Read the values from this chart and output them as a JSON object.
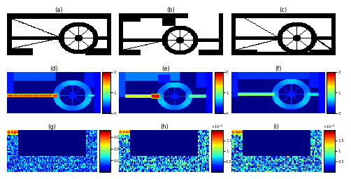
{
  "labels_row1": [
    "(a)",
    "(b)",
    "(c)"
  ],
  "labels_row2": [
    "(d)",
    "(e)",
    "(f)"
  ],
  "labels_row3": [
    "(g)",
    "(h)",
    "(i)"
  ],
  "colorbar1_ticks": [
    0,
    1,
    2
  ],
  "colorbar1_ticklabels": [
    "0",
    "1",
    "2"
  ],
  "colorbar2_ticks": [
    0.005,
    0.01,
    0.015
  ],
  "colorbar2_ticklabels": [
    "0.005",
    "0.01",
    "0.015"
  ],
  "colorbar3_ticks": [
    0.5,
    1.0,
    1.5
  ],
  "colorbar3_ticklabels": [
    "0.5",
    "1",
    "1.5"
  ],
  "colorbar3_exp": "$\\times 10^{-4}$",
  "label_fontsize": 6,
  "white": 1.0,
  "black": 0.0
}
